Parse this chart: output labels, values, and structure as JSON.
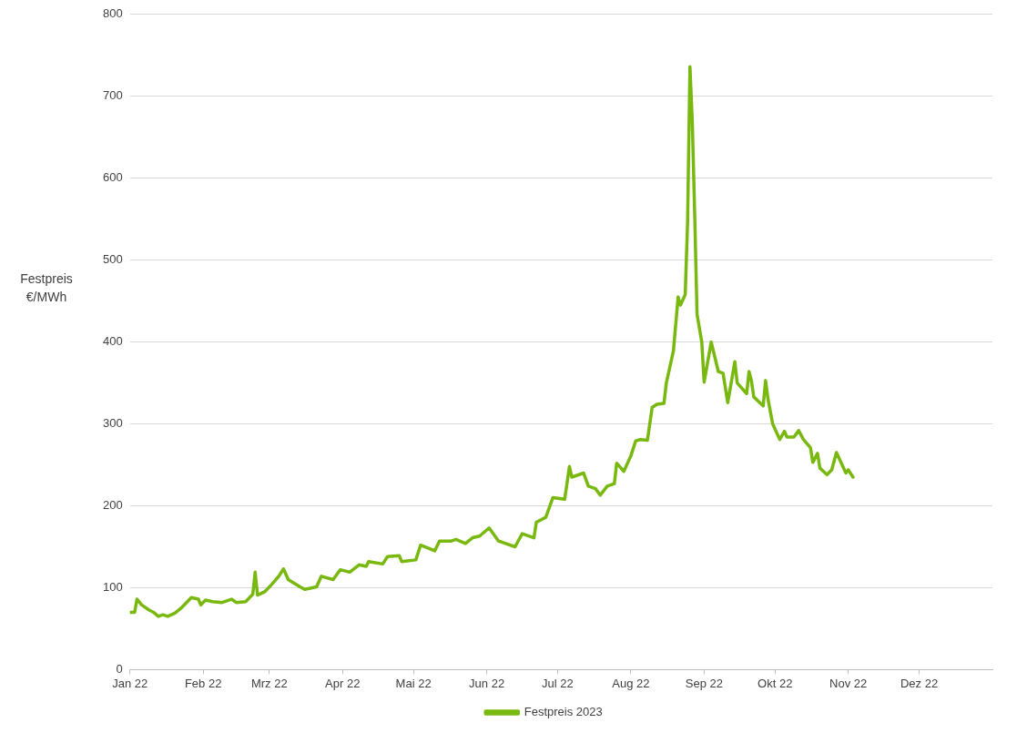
{
  "chart_data": {
    "type": "line",
    "ylabel": "Festpreis €/MWh",
    "xlim": [
      "2022-01-01",
      "2023-01-01"
    ],
    "xticks": [
      {
        "value": "2022-01-01",
        "label": "Jan 22"
      },
      {
        "value": "2022-02-01",
        "label": "Feb 22"
      },
      {
        "value": "2022-03-01",
        "label": "Mrz 22"
      },
      {
        "value": "2022-04-01",
        "label": "Apr 22"
      },
      {
        "value": "2022-05-01",
        "label": "Mai 22"
      },
      {
        "value": "2022-06-01",
        "label": "Jun 22"
      },
      {
        "value": "2022-07-01",
        "label": "Jul 22"
      },
      {
        "value": "2022-08-01",
        "label": "Aug 22"
      },
      {
        "value": "2022-09-01",
        "label": "Sep 22"
      },
      {
        "value": "2022-10-01",
        "label": "Okt 22"
      },
      {
        "value": "2022-11-01",
        "label": "Nov 22"
      },
      {
        "value": "2022-12-01",
        "label": "Dez 22"
      }
    ],
    "ylim": [
      0,
      800
    ],
    "yticks": [
      0,
      100,
      200,
      300,
      400,
      500,
      600,
      700,
      800
    ],
    "grid": "y",
    "legend": "bottom",
    "marker": "none",
    "line_style": "solid",
    "x": [
      "2022-01-01",
      "2022-01-03",
      "2022-01-04",
      "2022-01-06",
      "2022-01-09",
      "2022-01-11",
      "2022-01-13",
      "2022-01-15",
      "2022-01-17",
      "2022-01-20",
      "2022-01-23",
      "2022-01-27",
      "2022-01-30",
      "2022-01-31",
      "2022-02-02",
      "2022-02-05",
      "2022-02-09",
      "2022-02-13",
      "2022-02-15",
      "2022-02-19",
      "2022-02-22",
      "2022-02-23",
      "2022-02-24",
      "2022-02-27",
      "2022-03-02",
      "2022-03-05",
      "2022-03-07",
      "2022-03-09",
      "2022-03-14",
      "2022-03-16",
      "2022-03-21",
      "2022-03-23",
      "2022-03-28",
      "2022-03-31",
      "2022-04-04",
      "2022-04-08",
      "2022-04-11",
      "2022-04-12",
      "2022-04-18",
      "2022-04-20",
      "2022-04-25",
      "2022-04-26",
      "2022-05-02",
      "2022-05-04",
      "2022-05-10",
      "2022-05-12",
      "2022-05-17",
      "2022-05-19",
      "2022-05-23",
      "2022-05-26",
      "2022-05-29",
      "2022-06-02",
      "2022-06-06",
      "2022-06-13",
      "2022-06-16",
      "2022-06-21",
      "2022-06-22",
      "2022-06-26",
      "2022-06-29",
      "2022-07-04",
      "2022-07-06",
      "2022-07-07",
      "2022-07-12",
      "2022-07-14",
      "2022-07-17",
      "2022-07-19",
      "2022-07-22",
      "2022-07-25",
      "2022-07-26",
      "2022-07-29",
      "2022-08-01",
      "2022-08-03",
      "2022-08-05",
      "2022-08-08",
      "2022-08-10",
      "2022-08-12",
      "2022-08-15",
      "2022-08-16",
      "2022-08-19",
      "2022-08-21",
      "2022-08-22",
      "2022-08-24",
      "2022-08-25",
      "2022-08-26",
      "2022-08-27",
      "2022-08-28",
      "2022-08-29",
      "2022-08-31",
      "2022-09-01",
      "2022-09-04",
      "2022-09-07",
      "2022-09-09",
      "2022-09-11",
      "2022-09-14",
      "2022-09-15",
      "2022-09-19",
      "2022-09-20",
      "2022-09-21",
      "2022-09-22",
      "2022-09-26",
      "2022-09-27",
      "2022-09-28",
      "2022-09-30",
      "2022-10-03",
      "2022-10-05",
      "2022-10-06",
      "2022-10-09",
      "2022-10-11",
      "2022-10-13",
      "2022-10-16",
      "2022-10-17",
      "2022-10-19",
      "2022-10-20",
      "2022-10-23",
      "2022-10-25",
      "2022-10-27",
      "2022-10-31",
      "2022-11-01",
      "2022-11-03"
    ],
    "series": [
      {
        "name": "Festpreis 2023",
        "color": "#78b80f",
        "values": [
          70,
          70,
          86,
          79,
          73,
          70,
          65,
          67,
          65,
          69,
          76,
          88,
          86,
          79,
          85,
          83,
          82,
          86,
          82,
          83,
          92,
          119,
          91,
          95,
          104,
          114,
          123,
          110,
          101,
          98,
          101,
          114,
          110,
          122,
          119,
          128,
          126,
          132,
          129,
          138,
          139,
          132,
          134,
          152,
          145,
          157,
          157,
          159,
          154,
          161,
          163,
          173,
          157,
          150,
          166,
          161,
          180,
          186,
          210,
          208,
          248,
          235,
          240,
          224,
          221,
          213,
          224,
          227,
          252,
          242,
          261,
          279,
          281,
          280,
          320,
          324,
          325,
          350,
          389,
          455,
          445,
          458,
          546,
          736,
          669,
          557,
          434,
          400,
          351,
          400,
          364,
          362,
          326,
          376,
          350,
          337,
          364,
          353,
          333,
          322,
          353,
          331,
          300,
          281,
          291,
          284,
          284,
          292,
          281,
          271,
          253,
          264,
          246,
          238,
          244,
          265,
          240,
          244,
          235
        ]
      }
    ]
  }
}
